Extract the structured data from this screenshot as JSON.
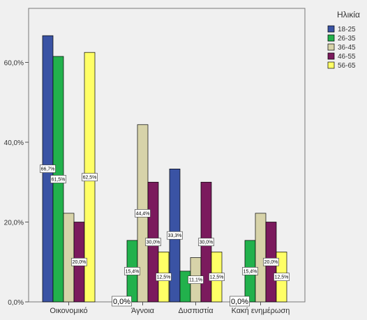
{
  "chart_data": {
    "type": "bar",
    "categories": [
      "Οικονομικό",
      "Άγνοια",
      "Δυσπιστία",
      "Κακή ενημέρωση"
    ],
    "series": [
      {
        "name": "18-25",
        "color": "#3a53a4",
        "values": [
          66.7,
          0.0,
          33.3,
          0.0
        ],
        "labels": [
          "66,7%",
          "0,0%",
          "33,3%",
          "0,0%"
        ]
      },
      {
        "name": "26-35",
        "color": "#22b14c",
        "values": [
          61.5,
          15.4,
          7.7,
          15.4
        ],
        "labels": [
          "61,5%",
          "15,4%",
          "",
          "15,4%"
        ]
      },
      {
        "name": "36-45",
        "color": "#d7d3a9",
        "values": [
          22.2,
          44.4,
          11.1,
          22.2
        ],
        "labels": [
          "",
          "44,4%",
          "11,1%",
          ""
        ]
      },
      {
        "name": "46-55",
        "color": "#7b1a5d",
        "values": [
          20.0,
          30.0,
          30.0,
          20.0
        ],
        "labels": [
          "20,0%",
          "30,0%",
          "30,0%",
          "20,0%"
        ]
      },
      {
        "name": "56-65",
        "color": "#ffff66",
        "values": [
          62.5,
          12.5,
          12.5,
          12.5
        ],
        "labels": [
          "62,5%",
          "12,5%",
          "12,5%",
          "12,5%"
        ]
      }
    ],
    "yticks": [
      {
        "value": 0,
        "label": "0,0%"
      },
      {
        "value": 20,
        "label": "20,0%"
      },
      {
        "value": 40,
        "label": "40,0%"
      },
      {
        "value": 60,
        "label": "60,0%"
      }
    ],
    "ylim": [
      0,
      70
    ],
    "legend_title": "Ηλικία",
    "legend_position": "right",
    "grid": false
  }
}
